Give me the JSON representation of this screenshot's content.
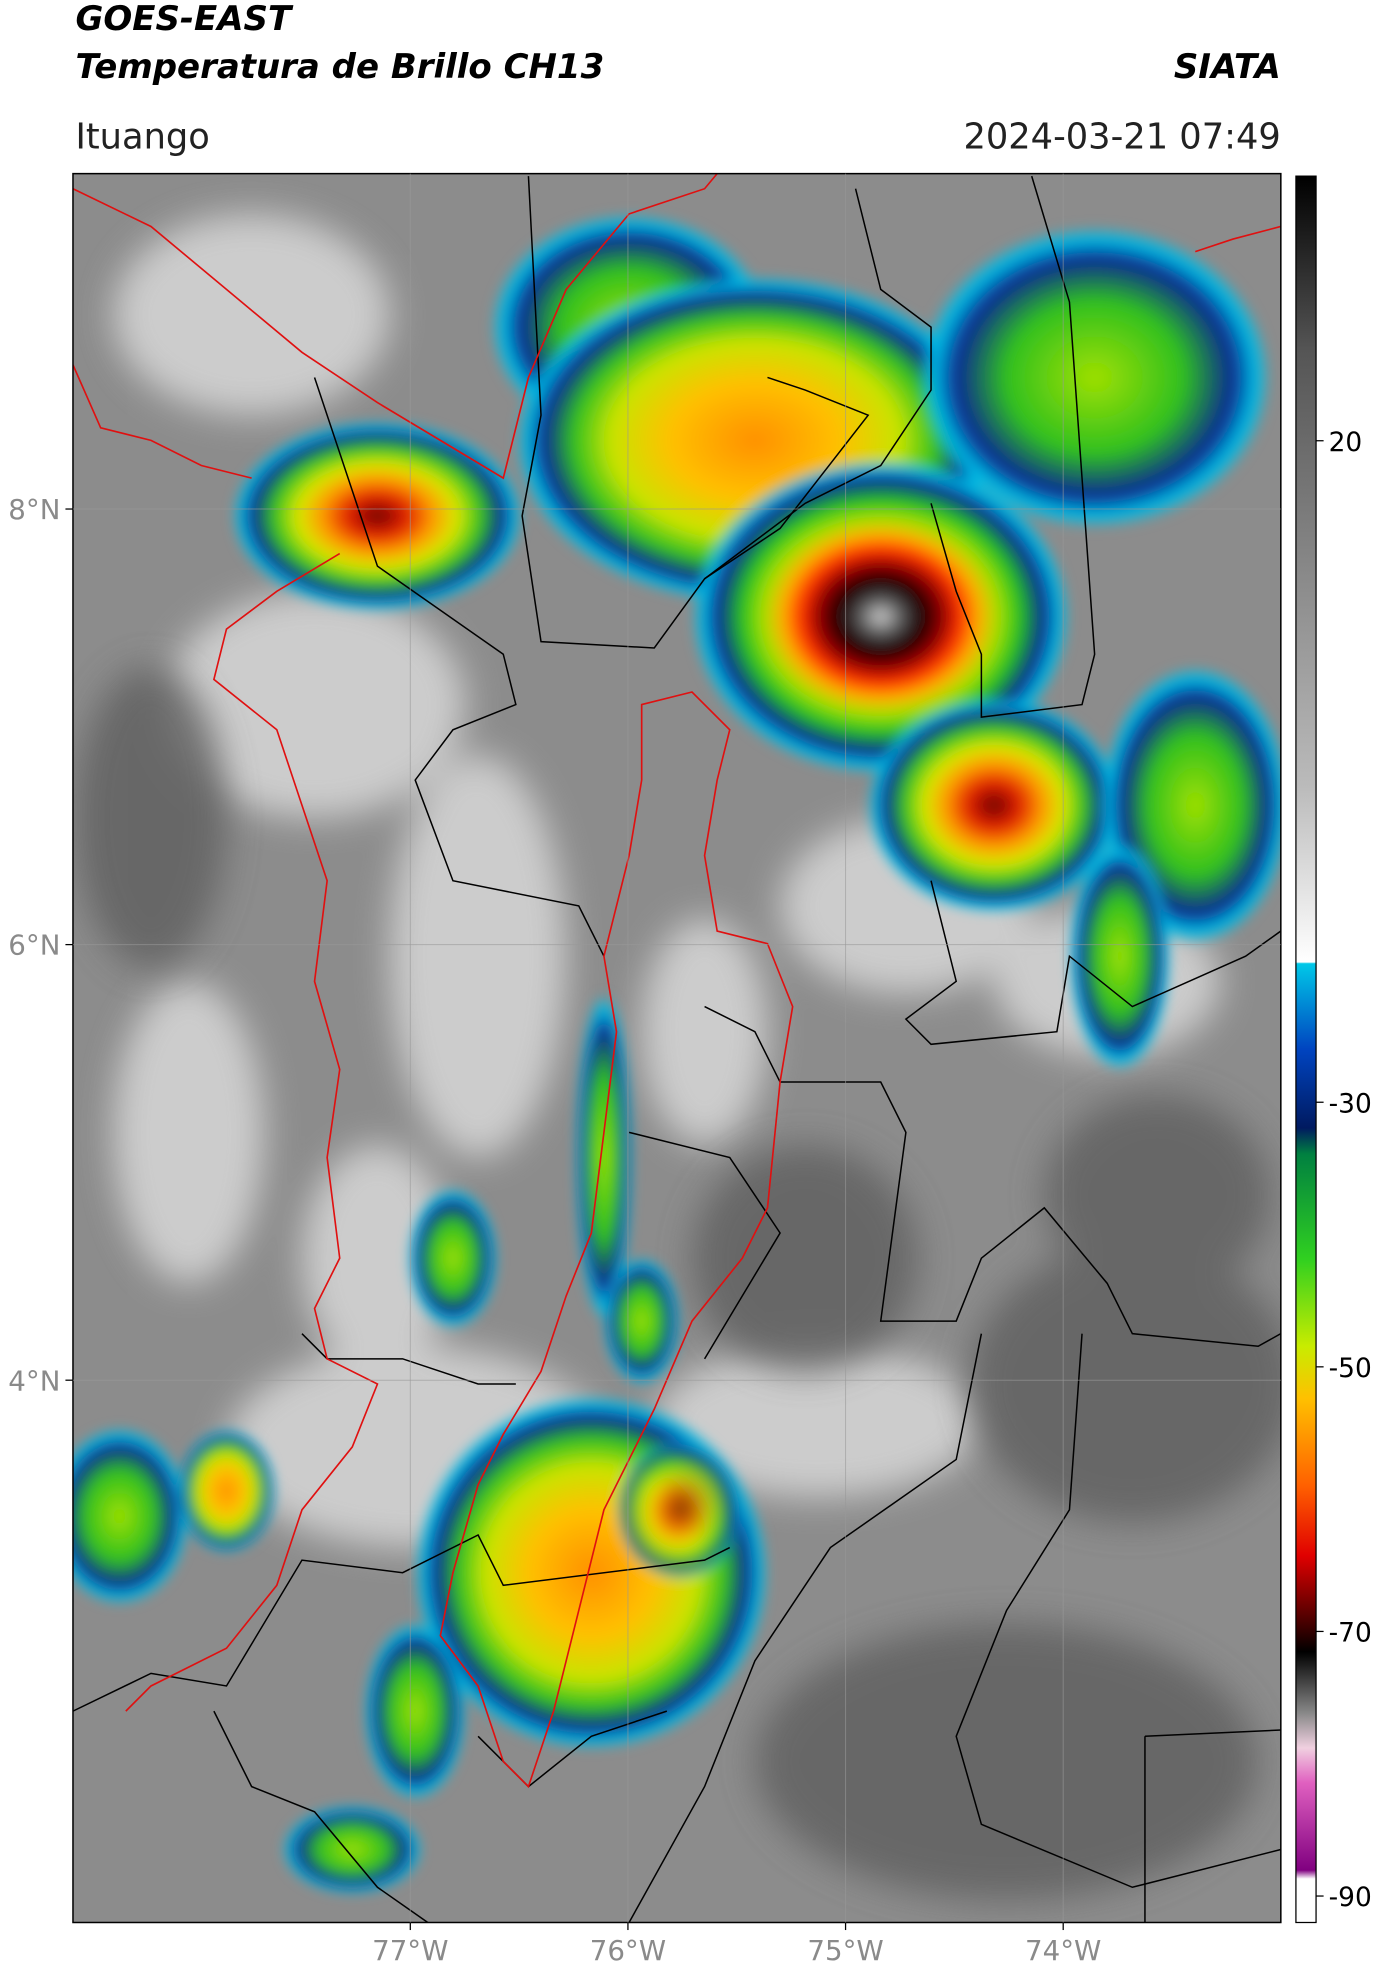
{
  "header": {
    "title": "GOES-EAST",
    "subtitle": "Temperatura de Brillo CH13",
    "source": "SIATA",
    "location": "Ituango",
    "timestamp": "2024-03-21 07:49"
  },
  "map": {
    "lon_range": [
      -78.55,
      -73.0
    ],
    "lat_range": [
      1.51,
      9.54
    ],
    "lon_ticks": [
      {
        "value": -77,
        "label": "77°W"
      },
      {
        "value": -76,
        "label": "76°W"
      },
      {
        "value": -75,
        "label": "75°W"
      },
      {
        "value": -74,
        "label": "74°W"
      }
    ],
    "lat_ticks": [
      {
        "value": 8,
        "label": "8°N"
      },
      {
        "value": 6,
        "label": "6°N"
      },
      {
        "value": 4,
        "label": "4°N"
      }
    ]
  },
  "colorbar": {
    "range": [
      -92,
      40
    ],
    "ticks": [
      20,
      -30,
      -50,
      -70,
      -90
    ]
  }
}
